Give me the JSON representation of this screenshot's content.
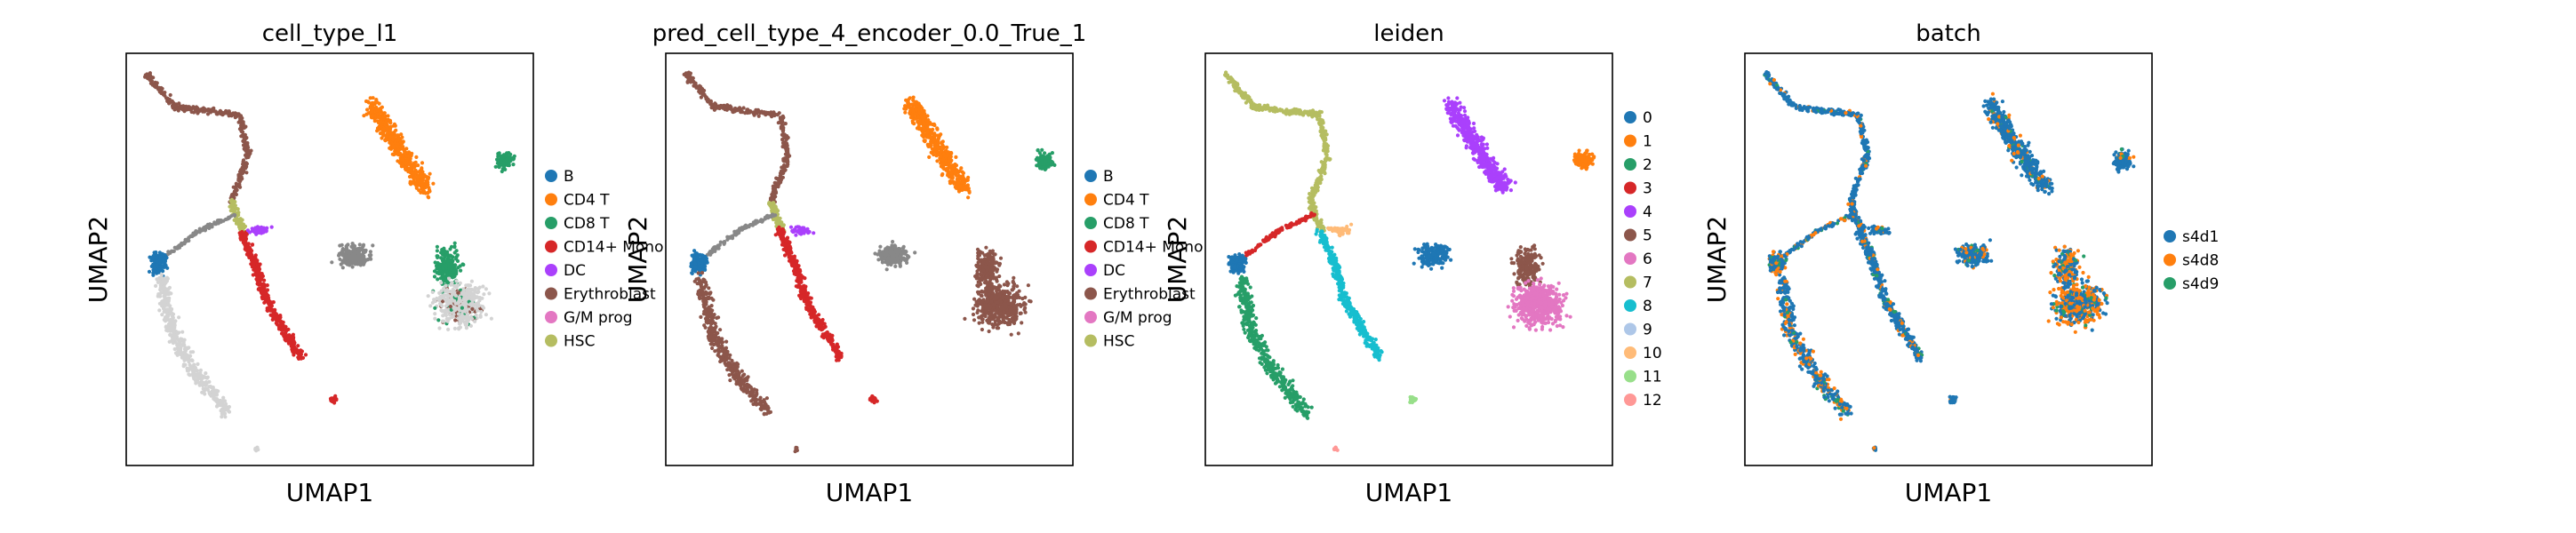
{
  "chart_data": [
    {
      "type": "scatter",
      "title": "cell_type_l1",
      "xlabel": "UMAP1",
      "ylabel": "UMAP2",
      "grid": false,
      "legend_position": "right",
      "series": [
        {
          "name": "B",
          "color": "#1f77b4"
        },
        {
          "name": "CD4 T",
          "color": "#ff7f0e"
        },
        {
          "name": "CD8 T",
          "color": "#279e68"
        },
        {
          "name": "CD14+ Mono",
          "color": "#d62728"
        },
        {
          "name": "DC",
          "color": "#aa40fc"
        },
        {
          "name": "Erythroblast",
          "color": "#8c564b"
        },
        {
          "name": "G/M prog",
          "color": "#e377c2"
        },
        {
          "name": "HSC",
          "color": "#b5bd61"
        }
      ]
    },
    {
      "type": "scatter",
      "title": "pred_cell_type_4_encoder_0.0_True_1",
      "xlabel": "UMAP1",
      "ylabel": "UMAP2",
      "grid": false,
      "legend_position": "right",
      "series": [
        {
          "name": "B",
          "color": "#1f77b4"
        },
        {
          "name": "CD4 T",
          "color": "#ff7f0e"
        },
        {
          "name": "CD8 T",
          "color": "#279e68"
        },
        {
          "name": "CD14+ Mono",
          "color": "#d62728"
        },
        {
          "name": "DC",
          "color": "#aa40fc"
        },
        {
          "name": "Erythroblast",
          "color": "#8c564b"
        },
        {
          "name": "G/M prog",
          "color": "#e377c2"
        },
        {
          "name": "HSC",
          "color": "#b5bd61"
        }
      ]
    },
    {
      "type": "scatter",
      "title": "leiden",
      "xlabel": "UMAP1",
      "ylabel": "UMAP2",
      "grid": false,
      "legend_position": "right",
      "series": [
        {
          "name": "0",
          "color": "#1f77b4"
        },
        {
          "name": "1",
          "color": "#ff7f0e"
        },
        {
          "name": "2",
          "color": "#279e68"
        },
        {
          "name": "3",
          "color": "#d62728"
        },
        {
          "name": "4",
          "color": "#aa40fc"
        },
        {
          "name": "5",
          "color": "#8c564b"
        },
        {
          "name": "6",
          "color": "#e377c2"
        },
        {
          "name": "7",
          "color": "#b5bd61"
        },
        {
          "name": "8",
          "color": "#17becf"
        },
        {
          "name": "9",
          "color": "#aec7e8"
        },
        {
          "name": "10",
          "color": "#ffbb78"
        },
        {
          "name": "11",
          "color": "#98df8a"
        },
        {
          "name": "12",
          "color": "#ff9896"
        }
      ]
    },
    {
      "type": "scatter",
      "title": "batch",
      "xlabel": "UMAP1",
      "ylabel": "UMAP2",
      "grid": false,
      "legend_position": "right",
      "series": [
        {
          "name": "s4d1",
          "color": "#1f77b4"
        },
        {
          "name": "s4d8",
          "color": "#ff7f0e"
        },
        {
          "name": "s4d9",
          "color": "#279e68"
        }
      ]
    }
  ],
  "unlabeled_color": "#d3d3d3"
}
